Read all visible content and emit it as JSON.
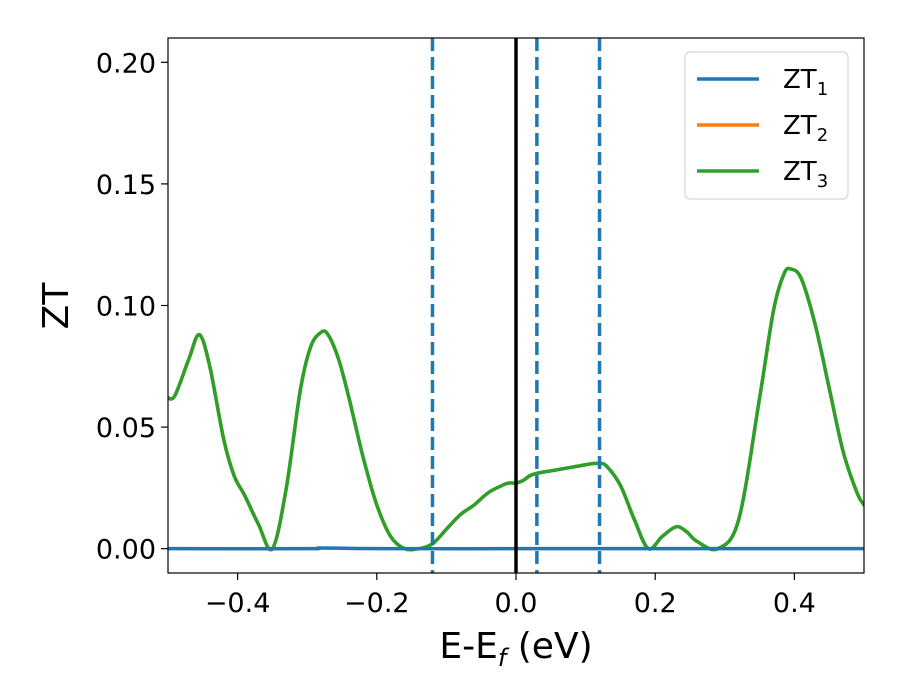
{
  "chart_data": {
    "type": "line",
    "xlabel": "E-E",
    "xlabel_subscript": "f",
    "xlabel_unit": " (eV)",
    "ylabel": "ZT",
    "xlim": [
      -0.5,
      0.5
    ],
    "ylim": [
      -0.01,
      0.21
    ],
    "x_ticks": [
      -0.4,
      -0.2,
      0.0,
      0.2,
      0.4
    ],
    "x_tick_labels": [
      "−0.4",
      "−0.2",
      "0.0",
      "0.2",
      "0.4"
    ],
    "y_ticks": [
      0.0,
      0.05,
      0.1,
      0.15,
      0.2
    ],
    "y_tick_labels": [
      "0.00",
      "0.05",
      "0.10",
      "0.15",
      "0.20"
    ],
    "grid": false,
    "legend_position": "top-right",
    "vertical_lines": [
      {
        "x": 0.0,
        "style": "solid",
        "color": "#000000"
      },
      {
        "x": -0.12,
        "style": "dashed",
        "color": "#1f77b4"
      },
      {
        "x": 0.03,
        "style": "dashed",
        "color": "#1f77b4"
      },
      {
        "x": 0.12,
        "style": "dashed",
        "color": "#1f77b4"
      }
    ],
    "series": [
      {
        "name": "ZT",
        "subscript": "1",
        "color": "#1f77b4",
        "x": [
          -0.5,
          -0.3,
          -0.28,
          -0.2,
          0.0,
          0.2,
          0.5
        ],
        "y": [
          0.0,
          0.0,
          0.0003,
          0.0,
          0.0,
          0.0,
          0.0
        ]
      },
      {
        "name": "ZT",
        "subscript": "2",
        "color": "#ff7f0e",
        "x": [
          -0.5,
          -0.49,
          -0.47,
          -0.455,
          -0.44,
          -0.42,
          -0.405,
          -0.39,
          -0.37,
          -0.35,
          -0.33,
          -0.31,
          -0.295,
          -0.28,
          -0.27,
          -0.255,
          -0.24,
          -0.22,
          -0.2,
          -0.18,
          -0.16,
          -0.14,
          -0.12,
          -0.1,
          -0.08,
          -0.06,
          -0.04,
          -0.02,
          -0.01,
          0.0,
          0.01,
          0.02,
          0.03,
          0.05,
          0.07,
          0.09,
          0.11,
          0.12,
          0.13,
          0.15,
          0.17,
          0.19,
          0.21,
          0.23,
          0.245,
          0.26,
          0.29,
          0.32,
          0.35,
          0.37,
          0.385,
          0.395,
          0.41,
          0.43,
          0.45,
          0.47,
          0.49,
          0.5
        ],
        "y": [
          0.062,
          0.063,
          0.078,
          0.088,
          0.075,
          0.045,
          0.03,
          0.022,
          0.01,
          0.0,
          0.025,
          0.065,
          0.083,
          0.089,
          0.088,
          0.078,
          0.062,
          0.038,
          0.018,
          0.005,
          0.0,
          0.0,
          0.002,
          0.008,
          0.014,
          0.018,
          0.023,
          0.026,
          0.027,
          0.027,
          0.028,
          0.03,
          0.031,
          0.032,
          0.033,
          0.034,
          0.035,
          0.035,
          0.034,
          0.026,
          0.012,
          0.0,
          0.005,
          0.009,
          0.007,
          0.003,
          0.0,
          0.012,
          0.062,
          0.098,
          0.113,
          0.115,
          0.111,
          0.092,
          0.066,
          0.04,
          0.023,
          0.018
        ]
      },
      {
        "name": "ZT",
        "subscript": "3",
        "color": "#2ca02c",
        "x": [
          -0.5,
          -0.49,
          -0.47,
          -0.455,
          -0.44,
          -0.42,
          -0.405,
          -0.39,
          -0.37,
          -0.35,
          -0.33,
          -0.31,
          -0.295,
          -0.28,
          -0.27,
          -0.255,
          -0.24,
          -0.22,
          -0.2,
          -0.18,
          -0.16,
          -0.14,
          -0.12,
          -0.1,
          -0.08,
          -0.06,
          -0.04,
          -0.02,
          -0.01,
          0.0,
          0.01,
          0.02,
          0.03,
          0.05,
          0.07,
          0.09,
          0.11,
          0.12,
          0.13,
          0.15,
          0.17,
          0.19,
          0.21,
          0.23,
          0.245,
          0.26,
          0.29,
          0.32,
          0.35,
          0.37,
          0.385,
          0.395,
          0.41,
          0.43,
          0.45,
          0.47,
          0.49,
          0.5
        ],
        "y": [
          0.062,
          0.063,
          0.078,
          0.088,
          0.075,
          0.045,
          0.03,
          0.022,
          0.01,
          0.0,
          0.025,
          0.065,
          0.083,
          0.089,
          0.088,
          0.078,
          0.062,
          0.038,
          0.018,
          0.005,
          0.0,
          0.0,
          0.002,
          0.008,
          0.014,
          0.018,
          0.023,
          0.026,
          0.027,
          0.027,
          0.028,
          0.03,
          0.031,
          0.032,
          0.033,
          0.034,
          0.035,
          0.035,
          0.034,
          0.026,
          0.012,
          0.0,
          0.005,
          0.009,
          0.007,
          0.003,
          0.0,
          0.012,
          0.062,
          0.098,
          0.113,
          0.115,
          0.111,
          0.092,
          0.066,
          0.04,
          0.023,
          0.018
        ]
      }
    ]
  }
}
